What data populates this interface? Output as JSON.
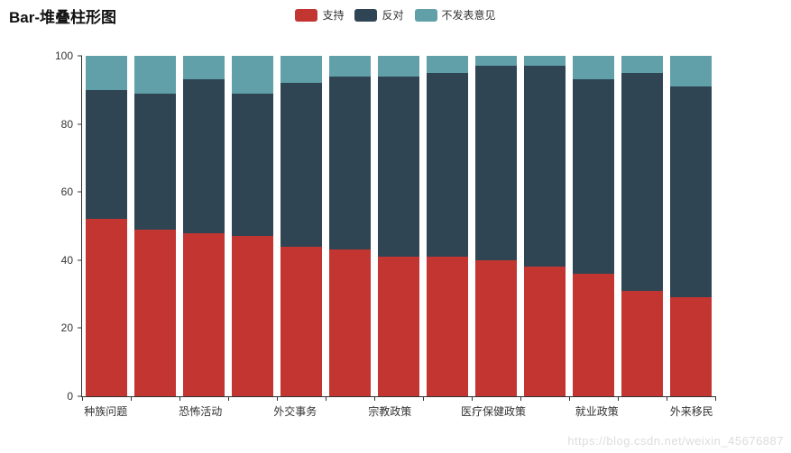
{
  "page": {
    "title": "Bar-堆叠柱形图",
    "watermark": "https://blog.csdn.net/weixin_45676887"
  },
  "chart_data": {
    "type": "bar",
    "stacked": true,
    "title": "Bar-堆叠柱形图",
    "categories": [
      "种族问题",
      "",
      "恐怖活动",
      "",
      "外交事务",
      "",
      "宗教政策",
      "",
      "医疗保健政策",
      "",
      "就业政策",
      "",
      "外来移民"
    ],
    "series": [
      {
        "name": "支持",
        "color": "#c23531",
        "values": [
          52,
          49,
          48,
          47,
          44,
          43,
          41,
          41,
          40,
          38,
          36,
          31,
          29
        ]
      },
      {
        "name": "反对",
        "color": "#2f4554",
        "values": [
          38,
          40,
          45,
          42,
          48,
          51,
          53,
          54,
          57,
          59,
          57,
          64,
          62
        ]
      },
      {
        "name": "不发表意见",
        "color": "#61a0a8",
        "values": [
          10,
          11,
          7,
          11,
          8,
          6,
          6,
          5,
          3,
          3,
          7,
          5,
          9
        ]
      }
    ],
    "xlabel": "",
    "ylabel": "",
    "ylim": [
      0,
      100
    ],
    "yticks": [
      0,
      20,
      40,
      60,
      80,
      100
    ],
    "legend_position": "top-center",
    "grid": false
  }
}
